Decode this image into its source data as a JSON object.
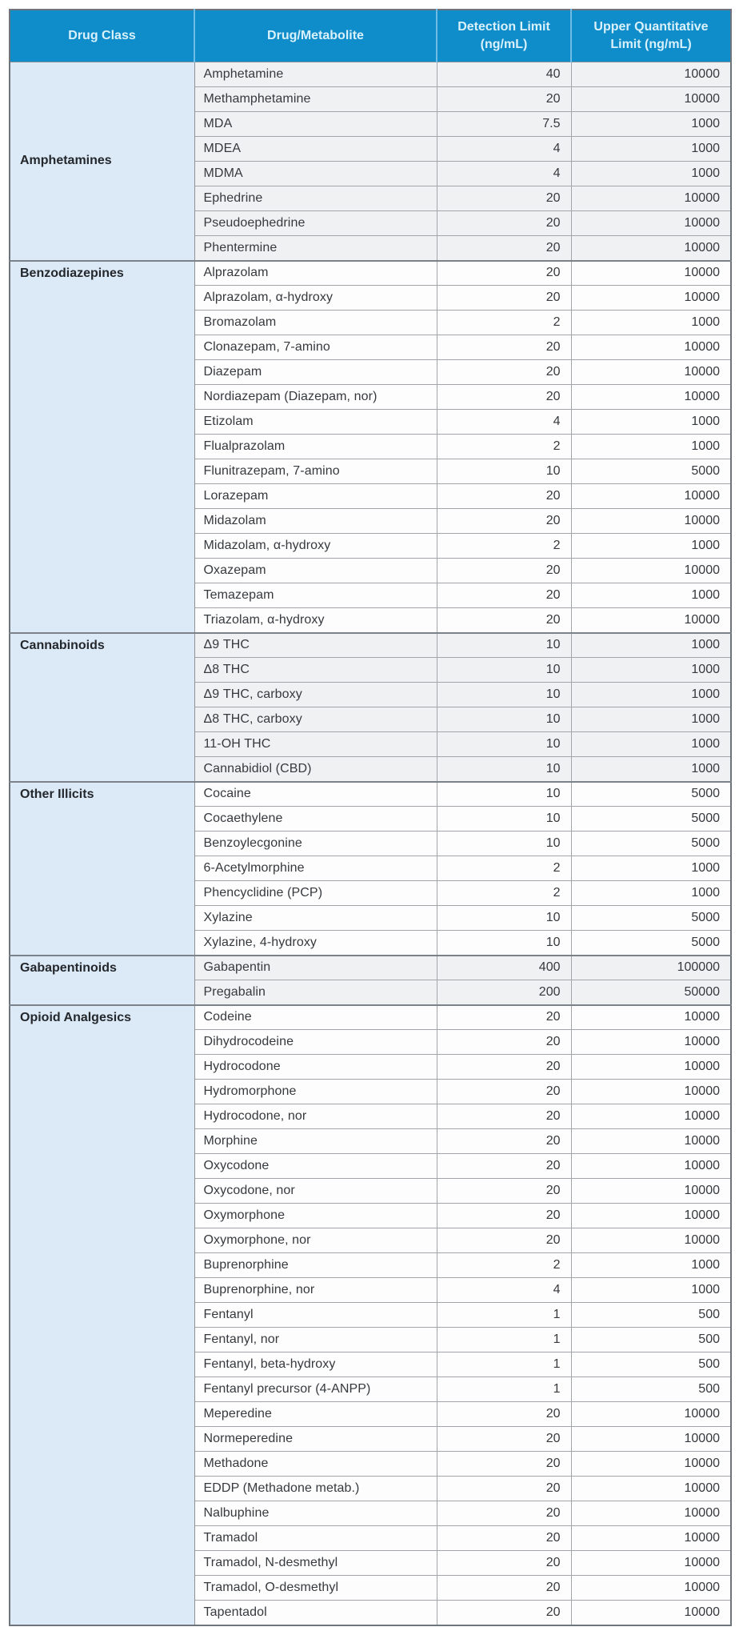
{
  "colors": {
    "header_bg": "#0f8cca",
    "header_text": "#d9f1fb",
    "class_column_bg": "#dce9f6",
    "shaded_row_bg": "#f0f1f3",
    "white_row_bg": "#fdfdfd",
    "outer_border": "#6e747b",
    "row_border": "#a2a6ab",
    "group_border": "#7c8289",
    "header_divider": "#6fbde4"
  },
  "table": {
    "headers": {
      "drug_class": "Drug Class",
      "drug_metabolite": "Drug/Metabolite",
      "detection_limit_line1": "Detection Limit",
      "detection_limit_line2": "(ng/mL)",
      "upper_limit_line1": "Upper Quantitative",
      "upper_limit_line2": "Limit (ng/mL)"
    },
    "groups": [
      {
        "drug_class": "Amphetamines",
        "shaded": true,
        "label_valign": "middle",
        "rows": [
          {
            "name": "Amphetamine",
            "detection_limit": "40",
            "upper_limit": "10000"
          },
          {
            "name": "Methamphetamine",
            "detection_limit": "20",
            "upper_limit": "10000"
          },
          {
            "name": "MDA",
            "detection_limit": "7.5",
            "upper_limit": "1000"
          },
          {
            "name": "MDEA",
            "detection_limit": "4",
            "upper_limit": "1000"
          },
          {
            "name": "MDMA",
            "detection_limit": "4",
            "upper_limit": "1000"
          },
          {
            "name": "Ephedrine",
            "detection_limit": "20",
            "upper_limit": "10000"
          },
          {
            "name": "Pseudoephedrine",
            "detection_limit": "20",
            "upper_limit": "10000"
          },
          {
            "name": "Phentermine",
            "detection_limit": "20",
            "upper_limit": "10000"
          }
        ]
      },
      {
        "drug_class": "Benzodiazepines",
        "shaded": false,
        "label_valign": "top",
        "rows": [
          {
            "name": "Alprazolam",
            "detection_limit": "20",
            "upper_limit": "10000"
          },
          {
            "name": "Alprazolam, α-hydroxy",
            "detection_limit": "20",
            "upper_limit": "10000"
          },
          {
            "name": "Bromazolam",
            "detection_limit": "2",
            "upper_limit": "1000"
          },
          {
            "name": "Clonazepam, 7-amino",
            "detection_limit": "20",
            "upper_limit": "10000"
          },
          {
            "name": "Diazepam",
            "detection_limit": "20",
            "upper_limit": "10000"
          },
          {
            "name": "Nordiazepam (Diazepam, nor)",
            "detection_limit": "20",
            "upper_limit": "10000"
          },
          {
            "name": "Etizolam",
            "detection_limit": "4",
            "upper_limit": "1000"
          },
          {
            "name": "Flualprazolam",
            "detection_limit": "2",
            "upper_limit": "1000"
          },
          {
            "name": "Flunitrazepam, 7-amino",
            "detection_limit": "10",
            "upper_limit": "5000"
          },
          {
            "name": "Lorazepam",
            "detection_limit": "20",
            "upper_limit": "10000"
          },
          {
            "name": "Midazolam",
            "detection_limit": "20",
            "upper_limit": "10000"
          },
          {
            "name": "Midazolam, α-hydroxy",
            "detection_limit": "2",
            "upper_limit": "1000"
          },
          {
            "name": "Oxazepam",
            "detection_limit": "20",
            "upper_limit": "10000"
          },
          {
            "name": "Temazepam",
            "detection_limit": "20",
            "upper_limit": "1000"
          },
          {
            "name": "Triazolam, α-hydroxy",
            "detection_limit": "20",
            "upper_limit": "10000"
          }
        ]
      },
      {
        "drug_class": "Cannabinoids",
        "shaded": true,
        "label_valign": "top",
        "rows": [
          {
            "name": "Δ9 THC",
            "detection_limit": "10",
            "upper_limit": "1000"
          },
          {
            "name": "Δ8 THC",
            "detection_limit": "10",
            "upper_limit": "1000"
          },
          {
            "name": "Δ9 THC, carboxy",
            "detection_limit": "10",
            "upper_limit": "1000"
          },
          {
            "name": "Δ8 THC, carboxy",
            "detection_limit": "10",
            "upper_limit": "1000"
          },
          {
            "name": "11-OH THC",
            "detection_limit": "10",
            "upper_limit": "1000"
          },
          {
            "name": "Cannabidiol (CBD)",
            "detection_limit": "10",
            "upper_limit": "1000"
          }
        ]
      },
      {
        "drug_class": "Other Illicits",
        "shaded": false,
        "label_valign": "top",
        "rows": [
          {
            "name": "Cocaine",
            "detection_limit": "10",
            "upper_limit": "5000"
          },
          {
            "name": "Cocaethylene",
            "detection_limit": "10",
            "upper_limit": "5000"
          },
          {
            "name": "Benzoylecgonine",
            "detection_limit": "10",
            "upper_limit": "5000"
          },
          {
            "name": "6-Acetylmorphine",
            "detection_limit": "2",
            "upper_limit": "1000"
          },
          {
            "name": "Phencyclidine (PCP)",
            "detection_limit": "2",
            "upper_limit": "1000"
          },
          {
            "name": "Xylazine",
            "detection_limit": "10",
            "upper_limit": "5000"
          },
          {
            "name": "Xylazine, 4-hydroxy",
            "detection_limit": "10",
            "upper_limit": "5000"
          }
        ]
      },
      {
        "drug_class": "Gabapentinoids",
        "shaded": true,
        "label_valign": "top",
        "rows": [
          {
            "name": "Gabapentin",
            "detection_limit": "400",
            "upper_limit": "100000"
          },
          {
            "name": "Pregabalin",
            "detection_limit": "200",
            "upper_limit": "50000"
          }
        ]
      },
      {
        "drug_class": "Opioid Analgesics",
        "shaded": false,
        "label_valign": "top",
        "rows": [
          {
            "name": "Codeine",
            "detection_limit": "20",
            "upper_limit": "10000"
          },
          {
            "name": "Dihydrocodeine",
            "detection_limit": "20",
            "upper_limit": "10000"
          },
          {
            "name": "Hydrocodone",
            "detection_limit": "20",
            "upper_limit": "10000"
          },
          {
            "name": "Hydromorphone",
            "detection_limit": "20",
            "upper_limit": "10000"
          },
          {
            "name": "Hydrocodone, nor",
            "detection_limit": "20",
            "upper_limit": "10000"
          },
          {
            "name": "Morphine",
            "detection_limit": "20",
            "upper_limit": "10000"
          },
          {
            "name": "Oxycodone",
            "detection_limit": "20",
            "upper_limit": "10000"
          },
          {
            "name": "Oxycodone, nor",
            "detection_limit": "20",
            "upper_limit": "10000"
          },
          {
            "name": "Oxymorphone",
            "detection_limit": "20",
            "upper_limit": "10000"
          },
          {
            "name": "Oxymorphone, nor",
            "detection_limit": "20",
            "upper_limit": "10000"
          },
          {
            "name": "Buprenorphine",
            "detection_limit": "2",
            "upper_limit": "1000"
          },
          {
            "name": "Buprenorphine, nor",
            "detection_limit": "4",
            "upper_limit": "1000"
          },
          {
            "name": "Fentanyl",
            "detection_limit": "1",
            "upper_limit": "500"
          },
          {
            "name": "Fentanyl, nor",
            "detection_limit": "1",
            "upper_limit": "500"
          },
          {
            "name": "Fentanyl, beta-hydroxy",
            "detection_limit": "1",
            "upper_limit": "500"
          },
          {
            "name": "Fentanyl precursor (4-ANPP)",
            "detection_limit": "1",
            "upper_limit": "500"
          },
          {
            "name": "Meperedine",
            "detection_limit": "20",
            "upper_limit": "10000"
          },
          {
            "name": "Normeperedine",
            "detection_limit": "20",
            "upper_limit": "10000"
          },
          {
            "name": "Methadone",
            "detection_limit": "20",
            "upper_limit": "10000"
          },
          {
            "name": "EDDP (Methadone metab.)",
            "detection_limit": "20",
            "upper_limit": "10000"
          },
          {
            "name": "Nalbuphine",
            "detection_limit": "20",
            "upper_limit": "10000"
          },
          {
            "name": "Tramadol",
            "detection_limit": "20",
            "upper_limit": "10000"
          },
          {
            "name": "Tramadol, N-desmethyl",
            "detection_limit": "20",
            "upper_limit": "10000"
          },
          {
            "name": "Tramadol, O-desmethyl",
            "detection_limit": "20",
            "upper_limit": "10000"
          },
          {
            "name": "Tapentadol",
            "detection_limit": "20",
            "upper_limit": "10000"
          }
        ]
      }
    ]
  }
}
